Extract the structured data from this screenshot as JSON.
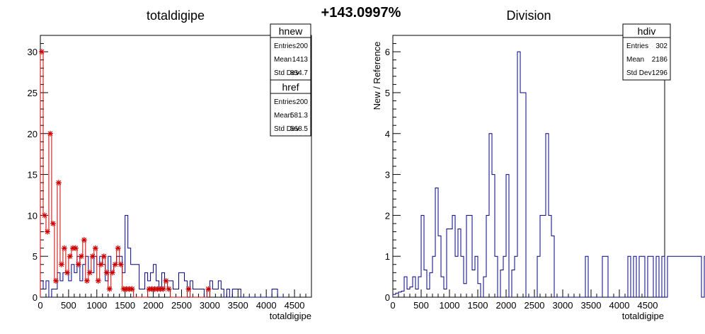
{
  "header": {
    "percent": "+143.0997%"
  },
  "chart_data": [
    {
      "type": "histogram",
      "title": "totaldigipe",
      "xlabel": "totaldigipe",
      "ylabel": "",
      "xlim": [
        0,
        4800
      ],
      "ylim": [
        0,
        32
      ],
      "xticks": [
        "0",
        "500",
        "1000",
        "1500",
        "2000",
        "2500",
        "3000",
        "3500",
        "4000",
        "4500"
      ],
      "yticks": [
        "0",
        "5",
        "10",
        "15",
        "20",
        "25",
        "30"
      ],
      "bin_width": 50,
      "series": [
        {
          "name": "hnew",
          "color": "#000080",
          "style": "step",
          "values": [
            2,
            1,
            2,
            0,
            1,
            1,
            3,
            2,
            3,
            3,
            2,
            4,
            3,
            5,
            2,
            4,
            5,
            3,
            3,
            5,
            4,
            5,
            4,
            2,
            5,
            3,
            4,
            5,
            5,
            3,
            10,
            6,
            4,
            4,
            4,
            1,
            1,
            3,
            2,
            3,
            4,
            2,
            1,
            3,
            2,
            2,
            2,
            1,
            1,
            3,
            3,
            2,
            1,
            2,
            1,
            1,
            1,
            1,
            0,
            1,
            2,
            1,
            1,
            2,
            1,
            0,
            1,
            0,
            1,
            1,
            1,
            0,
            0,
            0,
            0,
            0,
            0,
            0,
            0,
            0,
            0,
            0,
            1,
            1,
            0,
            0,
            0
          ]
        },
        {
          "name": "href",
          "color": "#cc0000",
          "style": "markers",
          "values": [
            30,
            10,
            8,
            20,
            9,
            2,
            14,
            4,
            6,
            3,
            5,
            6,
            6,
            4,
            5,
            7,
            2,
            3,
            5,
            6,
            2,
            4,
            5,
            3,
            1,
            3,
            4,
            6,
            4,
            1,
            1,
            1,
            1,
            0,
            0,
            0,
            0,
            0,
            1,
            1,
            1,
            1,
            1,
            1,
            2,
            1,
            0,
            0,
            0,
            0,
            0,
            0,
            1,
            0,
            0,
            0,
            0,
            0,
            0,
            1
          ]
        }
      ],
      "stats": [
        {
          "name": "hnew",
          "rows": [
            [
              "Entries",
              "200"
            ],
            [
              "Mean",
              "1413"
            ],
            [
              "Std Dev",
              "834.7"
            ]
          ]
        },
        {
          "name": "href",
          "rows": [
            [
              "Entries",
              "200"
            ],
            [
              "Mean",
              "581.3"
            ],
            [
              "Std Dev",
              "568.5"
            ]
          ]
        }
      ]
    },
    {
      "type": "histogram",
      "title": "Division",
      "xlabel": "totaldigipe",
      "ylabel": "New / Reference",
      "xlim": [
        0,
        4800
      ],
      "ylim": [
        0,
        6.4
      ],
      "xticks": [
        "0",
        "500",
        "1000",
        "1500",
        "2000",
        "2500",
        "3000",
        "3500",
        "4000",
        "4500"
      ],
      "yticks": [
        "0",
        "1",
        "2",
        "3",
        "4",
        "5",
        "6"
      ],
      "bin_width": 50,
      "series": [
        {
          "name": "hdiv",
          "color": "#000080",
          "style": "step",
          "values": [
            0.067,
            0.1,
            0.125,
            0.15,
            0.5,
            0.2,
            0.25,
            0.5,
            0.2,
            0.5,
            2,
            0.667,
            0.2,
            0.6,
            1,
            2.67,
            1.5,
            0.5,
            0.2,
            1.67,
            1.67,
            2,
            1,
            1.67,
            1,
            0.333,
            2,
            2,
            0.667,
            1,
            0.333,
            0,
            0.5,
            2,
            4,
            3,
            1,
            0,
            0.667,
            1,
            3,
            0,
            0.667,
            1,
            6,
            5,
            5,
            0,
            0,
            0,
            0,
            1,
            2,
            2,
            4,
            2,
            1.5,
            0,
            0,
            0,
            0,
            0,
            0,
            0,
            0,
            0,
            0,
            0,
            1,
            0,
            0,
            0,
            0,
            0,
            1,
            1,
            0,
            0,
            0,
            0,
            0,
            0,
            0,
            1,
            0,
            1,
            0,
            1,
            1,
            0,
            1,
            1,
            0,
            1,
            0,
            1,
            0,
            1,
            1,
            1,
            1,
            1,
            1,
            1,
            1,
            1,
            1,
            1,
            1,
            0,
            1,
            1,
            1,
            1,
            1,
            1,
            1,
            1,
            1
          ]
        }
      ],
      "stats": [
        {
          "name": "hdiv",
          "rows": [
            [
              "Entries",
              "302"
            ],
            [
              "Mean",
              "2186"
            ],
            [
              "Std Dev",
              "1296"
            ]
          ]
        }
      ]
    }
  ]
}
